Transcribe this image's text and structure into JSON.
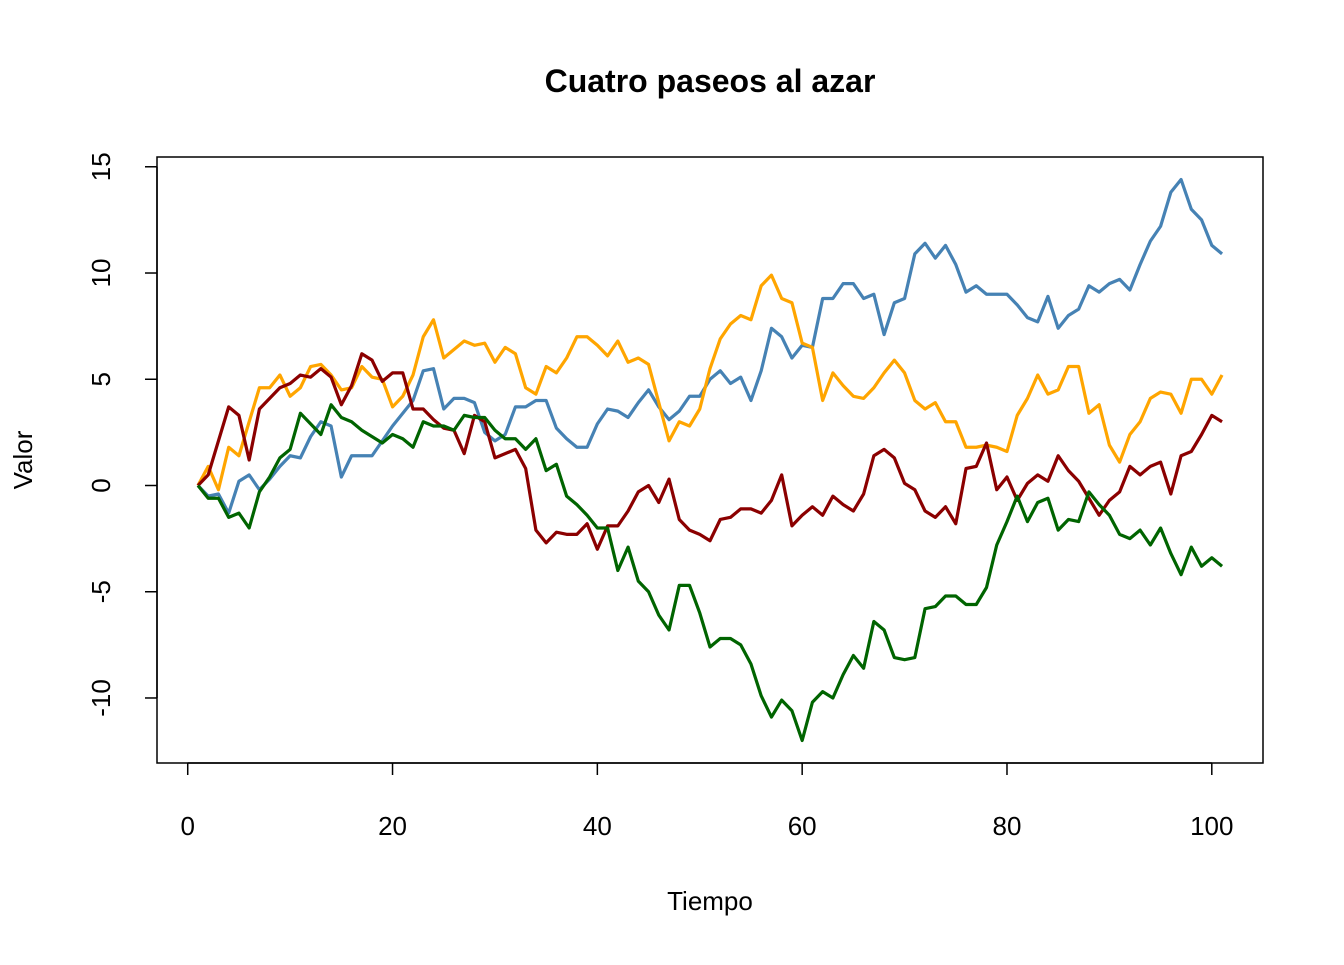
{
  "chart_data": {
    "type": "line",
    "title": "Cuatro paseos al azar",
    "x_label": "Tiempo",
    "y_label": "Valor",
    "x": [
      1,
      2,
      3,
      4,
      5,
      6,
      7,
      8,
      9,
      10,
      11,
      12,
      13,
      14,
      15,
      16,
      17,
      18,
      19,
      20,
      21,
      22,
      23,
      24,
      25,
      26,
      27,
      28,
      29,
      30,
      31,
      32,
      33,
      34,
      35,
      36,
      37,
      38,
      39,
      40,
      41,
      42,
      43,
      44,
      45,
      46,
      47,
      48,
      49,
      50,
      51,
      52,
      53,
      54,
      55,
      56,
      57,
      58,
      59,
      60,
      61,
      62,
      63,
      64,
      65,
      66,
      67,
      68,
      69,
      70,
      71,
      72,
      73,
      74,
      75,
      76,
      77,
      78,
      79,
      80,
      81,
      82,
      83,
      84,
      85,
      86,
      87,
      88,
      89,
      90,
      91,
      92,
      93,
      94,
      95,
      96,
      97,
      98,
      99,
      100,
      101
    ],
    "series": [
      {
        "color": "#4682B4",
        "values": [
          0,
          -0.5,
          -0.4,
          -1.3,
          0.2,
          0.5,
          -0.2,
          0.3,
          0.9,
          1.4,
          1.3,
          2.3,
          3.0,
          2.8,
          0.4,
          1.4,
          1.4,
          1.4,
          2.1,
          2.8,
          3.4,
          4.0,
          5.4,
          5.5,
          3.6,
          4.1,
          4.1,
          3.9,
          2.5,
          2.1,
          2.4,
          3.7,
          3.7,
          4.0,
          4.0,
          2.7,
          2.2,
          1.8,
          1.8,
          2.9,
          3.6,
          3.5,
          3.2,
          3.9,
          4.5,
          3.7,
          3.1,
          3.5,
          4.2,
          4.2,
          5.0,
          5.4,
          4.8,
          5.1,
          4.0,
          5.4,
          7.4,
          7.0,
          6.0,
          6.6,
          6.5,
          8.8,
          8.8,
          9.5,
          9.5,
          8.8,
          9.0,
          7.1,
          8.6,
          8.8,
          10.9,
          11.4,
          10.7,
          11.3,
          10.4,
          9.1,
          9.4,
          9.0,
          9.0,
          9.0,
          8.5,
          7.9,
          7.7,
          8.9,
          7.4,
          8.0,
          8.3,
          9.4,
          9.1,
          9.5,
          9.7,
          9.2,
          10.4,
          11.5,
          12.2,
          13.8,
          14.4,
          13.0,
          12.5,
          11.3,
          10.9
        ]
      },
      {
        "color": "#FFA500",
        "values": [
          0,
          0.9,
          -0.2,
          1.8,
          1.4,
          3.0,
          4.6,
          4.6,
          5.2,
          4.2,
          4.6,
          5.6,
          5.7,
          5.2,
          4.5,
          4.6,
          5.6,
          5.1,
          5.0,
          3.7,
          4.2,
          5.2,
          7.0,
          7.8,
          6.0,
          6.4,
          6.8,
          6.6,
          6.7,
          5.8,
          6.5,
          6.2,
          4.6,
          4.3,
          5.6,
          5.3,
          6.0,
          7.0,
          7.0,
          6.6,
          6.1,
          6.8,
          5.8,
          6.0,
          5.7,
          3.9,
          2.1,
          3.0,
          2.8,
          3.6,
          5.5,
          6.9,
          7.6,
          8.0,
          7.8,
          9.4,
          9.9,
          8.8,
          8.6,
          6.7,
          6.5,
          4.0,
          5.3,
          4.7,
          4.2,
          4.1,
          4.6,
          5.3,
          5.9,
          5.3,
          4.0,
          3.6,
          3.9,
          3.0,
          3.0,
          1.8,
          1.8,
          1.9,
          1.8,
          1.6,
          3.3,
          4.1,
          5.2,
          4.3,
          4.5,
          5.6,
          5.6,
          3.4,
          3.8,
          1.9,
          1.1,
          2.4,
          3.0,
          4.1,
          4.4,
          4.3,
          3.4,
          5.0,
          5.0,
          4.3,
          5.2
        ]
      },
      {
        "color": "#8B0000",
        "values": [
          0,
          0.5,
          2.1,
          3.7,
          3.3,
          1.2,
          3.6,
          4.1,
          4.6,
          4.8,
          5.2,
          5.1,
          5.5,
          5.1,
          3.8,
          4.7,
          6.2,
          5.9,
          4.9,
          5.3,
          5.3,
          3.6,
          3.6,
          3.1,
          2.7,
          2.6,
          1.5,
          3.3,
          3.0,
          1.3,
          1.5,
          1.7,
          0.8,
          -2.1,
          -2.7,
          -2.2,
          -2.3,
          -2.3,
          -1.8,
          -3.0,
          -1.9,
          -1.9,
          -1.2,
          -0.3,
          0.0,
          -0.8,
          0.3,
          -1.6,
          -2.1,
          -2.3,
          -2.6,
          -1.6,
          -1.5,
          -1.1,
          -1.1,
          -1.3,
          -0.7,
          0.5,
          -1.9,
          -1.4,
          -1.0,
          -1.4,
          -0.5,
          -0.9,
          -1.2,
          -0.4,
          1.4,
          1.7,
          1.3,
          0.1,
          -0.2,
          -1.2,
          -1.5,
          -1.0,
          -1.8,
          0.8,
          0.9,
          2.0,
          -0.2,
          0.4,
          -0.7,
          0.1,
          0.5,
          0.2,
          1.4,
          0.7,
          0.2,
          -0.6,
          -1.4,
          -0.7,
          -0.3,
          0.9,
          0.5,
          0.9,
          1.1,
          -0.4,
          1.4,
          1.6,
          2.4,
          3.3,
          3.0
        ]
      },
      {
        "color": "#006400",
        "values": [
          0,
          -0.6,
          -0.6,
          -1.5,
          -1.3,
          -2.0,
          -0.3,
          0.4,
          1.3,
          1.7,
          3.4,
          2.9,
          2.4,
          3.8,
          3.2,
          3.0,
          2.6,
          2.3,
          2.0,
          2.4,
          2.2,
          1.8,
          3.0,
          2.8,
          2.8,
          2.6,
          3.3,
          3.2,
          3.2,
          2.6,
          2.2,
          2.2,
          1.7,
          2.2,
          0.7,
          1.0,
          -0.5,
          -0.9,
          -1.4,
          -2.0,
          -2.0,
          -4.0,
          -2.9,
          -4.5,
          -5.0,
          -6.1,
          -6.8,
          -4.7,
          -4.7,
          -6.0,
          -7.6,
          -7.2,
          -7.2,
          -7.5,
          -8.4,
          -9.9,
          -10.9,
          -10.1,
          -10.6,
          -12.0,
          -10.2,
          -9.7,
          -10.0,
          -8.9,
          -8.0,
          -8.6,
          -6.4,
          -6.8,
          -8.1,
          -8.2,
          -8.1,
          -5.8,
          -5.7,
          -5.2,
          -5.2,
          -5.6,
          -5.6,
          -4.8,
          -2.8,
          -1.7,
          -0.5,
          -1.7,
          -0.8,
          -0.6,
          -2.1,
          -1.6,
          -1.7,
          -0.3,
          -0.9,
          -1.4,
          -2.3,
          -2.5,
          -2.1,
          -2.8,
          -2.0,
          -3.2,
          -4.2,
          -2.9,
          -3.8,
          -3.4,
          -3.8
        ]
      }
    ],
    "xlim": [
      -3,
      105
    ],
    "ylim": [
      -13.06,
      15.46
    ],
    "xticks": [
      0,
      20,
      40,
      60,
      80,
      100
    ],
    "yticks": [
      -10,
      -5,
      0,
      5,
      10,
      15
    ]
  }
}
